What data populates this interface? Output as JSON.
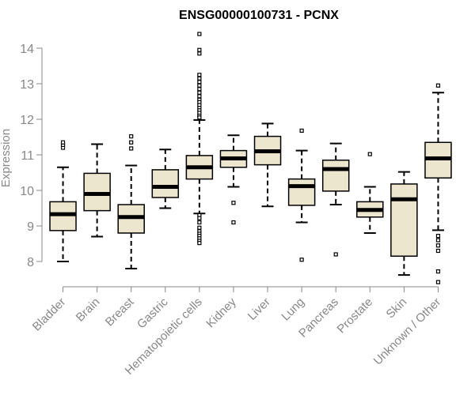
{
  "chart_data": {
    "type": "boxplot",
    "title": "ENSG00000100731 - PCNX",
    "xlabel": "",
    "ylabel": "Expression",
    "ylim": [
      7.3,
      14.5
    ],
    "yticks": [
      "8",
      "9",
      "10",
      "11",
      "12",
      "13",
      "14"
    ],
    "colors": {
      "box_fill": "#ede6cf",
      "stroke": "#000000",
      "axis": "#888888"
    },
    "categories": [
      "Bladder",
      "Brain",
      "Breast",
      "Gastric",
      "Hematopoietic cells",
      "Kidney",
      "Liver",
      "Lung",
      "Pancreas",
      "Prostate",
      "Skin",
      "Unknown / Other"
    ],
    "boxes": [
      {
        "name": "Bladder",
        "whisker_low": 8.0,
        "q1": 8.87,
        "median": 9.33,
        "q3": 9.68,
        "whisker_high": 10.65,
        "outliers": [
          11.2,
          11.28,
          11.35
        ]
      },
      {
        "name": "Brain",
        "whisker_low": 8.7,
        "q1": 9.43,
        "median": 9.9,
        "q3": 10.48,
        "whisker_high": 11.3,
        "outliers": []
      },
      {
        "name": "Breast",
        "whisker_low": 7.8,
        "q1": 8.8,
        "median": 9.25,
        "q3": 9.6,
        "whisker_high": 10.7,
        "outliers": [
          11.18,
          11.35,
          11.52
        ]
      },
      {
        "name": "Gastric",
        "whisker_low": 9.5,
        "q1": 9.8,
        "median": 10.1,
        "q3": 10.58,
        "whisker_high": 11.15,
        "outliers": []
      },
      {
        "name": "Hematopoietic cells",
        "whisker_low": 9.35,
        "q1": 10.32,
        "median": 10.65,
        "q3": 10.98,
        "whisker_high": 11.98,
        "outliers": [
          14.4,
          13.95,
          13.85,
          13.25,
          13.15,
          13.05,
          12.95,
          12.85,
          12.75,
          12.65,
          12.55,
          12.48,
          12.4,
          12.32,
          12.25,
          12.18,
          12.1,
          12.05,
          9.3,
          9.22,
          9.1,
          8.95,
          8.85,
          8.78,
          8.72,
          8.65,
          8.58,
          8.52
        ]
      },
      {
        "name": "Kidney",
        "whisker_low": 10.1,
        "q1": 10.65,
        "median": 10.9,
        "q3": 11.12,
        "whisker_high": 11.55,
        "outliers": [
          9.65,
          9.1
        ]
      },
      {
        "name": "Liver",
        "whisker_low": 9.55,
        "q1": 10.72,
        "median": 11.1,
        "q3": 11.52,
        "whisker_high": 11.88,
        "outliers": []
      },
      {
        "name": "Lung",
        "whisker_low": 9.1,
        "q1": 9.58,
        "median": 10.12,
        "q3": 10.32,
        "whisker_high": 11.12,
        "outliers": [
          11.68,
          8.05
        ]
      },
      {
        "name": "Pancreas",
        "whisker_low": 9.6,
        "q1": 9.98,
        "median": 10.6,
        "q3": 10.85,
        "whisker_high": 11.32,
        "outliers": [
          8.2
        ]
      },
      {
        "name": "Prostate",
        "whisker_low": 8.8,
        "q1": 9.25,
        "median": 9.45,
        "q3": 9.68,
        "whisker_high": 10.1,
        "outliers": [
          11.02
        ]
      },
      {
        "name": "Skin",
        "whisker_low": 7.62,
        "q1": 8.15,
        "median": 9.75,
        "q3": 10.18,
        "whisker_high": 10.52,
        "outliers": []
      },
      {
        "name": "Unknown / Other",
        "whisker_low": 8.88,
        "q1": 10.35,
        "median": 10.9,
        "q3": 11.35,
        "whisker_high": 12.75,
        "outliers": [
          12.95,
          8.72,
          8.6,
          8.45,
          8.3,
          7.72,
          7.42
        ]
      }
    ]
  }
}
